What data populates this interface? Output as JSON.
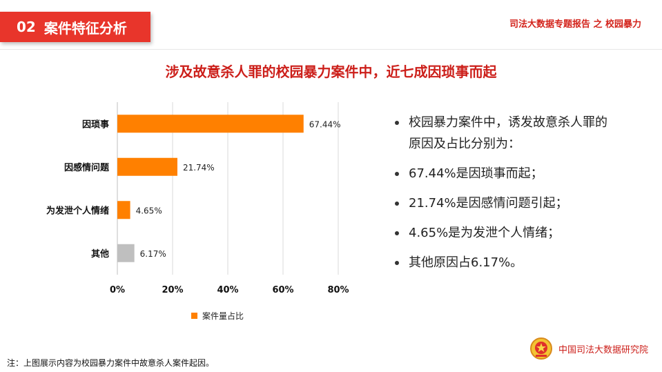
{
  "header": {
    "section_number": "02",
    "section_title": "案件特征分析",
    "report_title": "司法大数据专题报告 之 校园暴力"
  },
  "headline": "涉及故意杀人罪的校园暴力案件中，近七成因琐事而起",
  "chart_data": {
    "type": "bar",
    "orientation": "horizontal",
    "categories": [
      "因琐事",
      "因感情问题",
      "为发泄个人情绪",
      "其他"
    ],
    "series": [
      {
        "name": "案件量占比",
        "values": [
          67.44,
          21.74,
          4.65,
          6.17
        ]
      }
    ],
    "data_labels": [
      "67.44%",
      "21.74%",
      "4.65%",
      "6.17%"
    ],
    "bar_colors": [
      "#ff8000",
      "#ff8000",
      "#ff8000",
      "#bfbfbf"
    ],
    "x_ticks": [
      "0%",
      "20%",
      "40%",
      "60%",
      "80%"
    ],
    "xlim": [
      0,
      80
    ],
    "legend": {
      "label": "案件量占比",
      "color": "#ff8000",
      "position": "bottom"
    },
    "grid": true
  },
  "bullets": [
    "校园暴力案件中，诱发故意杀人罪的原因及占比分别为：",
    "67.44%是因琐事而起；",
    "21.74%是因感情问题引起；",
    "4.65%是为发泄个人情绪；",
    "其他原因占6.17%。"
  ],
  "footnote": "注：上图展示内容为校园暴力案件中故意杀人案件起因。",
  "organization": "中国司法大数据研究院",
  "colors": {
    "accent_red": "#e8352b",
    "title_red": "#cc1f1a",
    "bar_orange": "#ff8000",
    "bar_gray": "#bfbfbf"
  },
  "icons": {
    "emblem": "court-emblem-icon"
  }
}
